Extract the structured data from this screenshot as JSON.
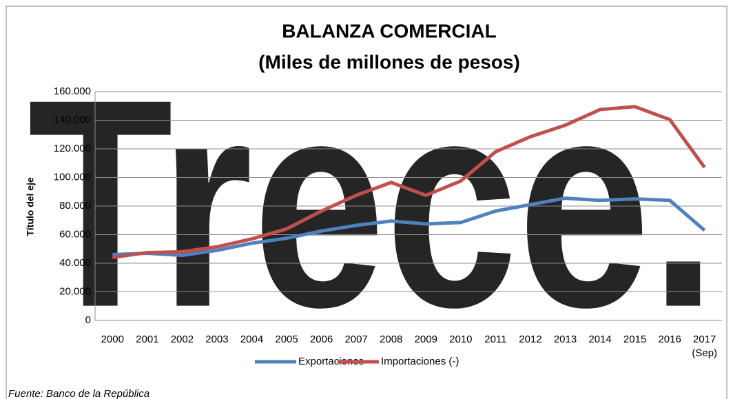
{
  "chart_data": {
    "type": "line",
    "title": "BALANZA COMERCIAL",
    "subtitle": "(Miles de millones de pesos)",
    "y_label": "Título del eje",
    "source": "Fuente: Banco de la República",
    "watermark": "Trece.",
    "categories": [
      "2000",
      "2001",
      "2002",
      "2003",
      "2004",
      "2005",
      "2006",
      "2007",
      "2008",
      "2009",
      "2010",
      "2011",
      "2012",
      "2013",
      "2014",
      "2015",
      "2016",
      "2017\n(Sep)"
    ],
    "series": [
      {
        "name": "Exportaciones",
        "color": "#4f81bd",
        "values": [
          46000,
          47000,
          45500,
          49000,
          54000,
          57500,
          62500,
          66500,
          69500,
          67500,
          68500,
          76500,
          81000,
          85500,
          84000,
          85000,
          84000,
          63000
        ]
      },
      {
        "name": "Importaciones (-)",
        "color": "#c0504d",
        "values": [
          44000,
          47500,
          48000,
          51500,
          57000,
          64000,
          76500,
          87500,
          96500,
          87500,
          97500,
          118000,
          128500,
          136500,
          147500,
          149500,
          140500,
          107000
        ]
      }
    ],
    "ylim": [
      0,
      160000
    ],
    "yticks": [
      0,
      {
        "value": 20000,
        "label": "20.000"
      },
      {
        "value": 40000,
        "label": "40.000"
      },
      {
        "value": 60000,
        "label": "60.000"
      },
      {
        "value": 80000,
        "label": "80.000"
      },
      {
        "value": 100000,
        "label": "100.000"
      },
      {
        "value": 120000,
        "label": "120.000"
      },
      {
        "value": 140000,
        "label": "140.000"
      },
      {
        "value": 160000,
        "label": "160.000"
      }
    ],
    "grid": true,
    "legend": "bottom"
  }
}
